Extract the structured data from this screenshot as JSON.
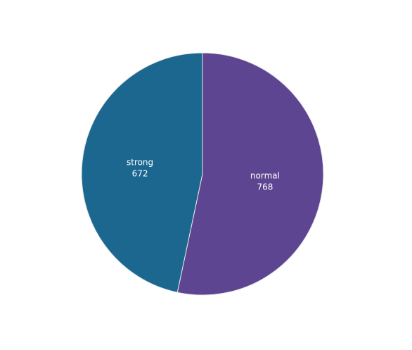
{
  "chart_data": {
    "type": "pie",
    "slices": [
      {
        "label": "normal",
        "value": 768,
        "color": "#5e4591"
      },
      {
        "label": "strong",
        "value": 672,
        "color": "#1c6790"
      }
    ],
    "start": "top",
    "direction": "clockwise",
    "slice_border_color": "#e8e8e8"
  }
}
